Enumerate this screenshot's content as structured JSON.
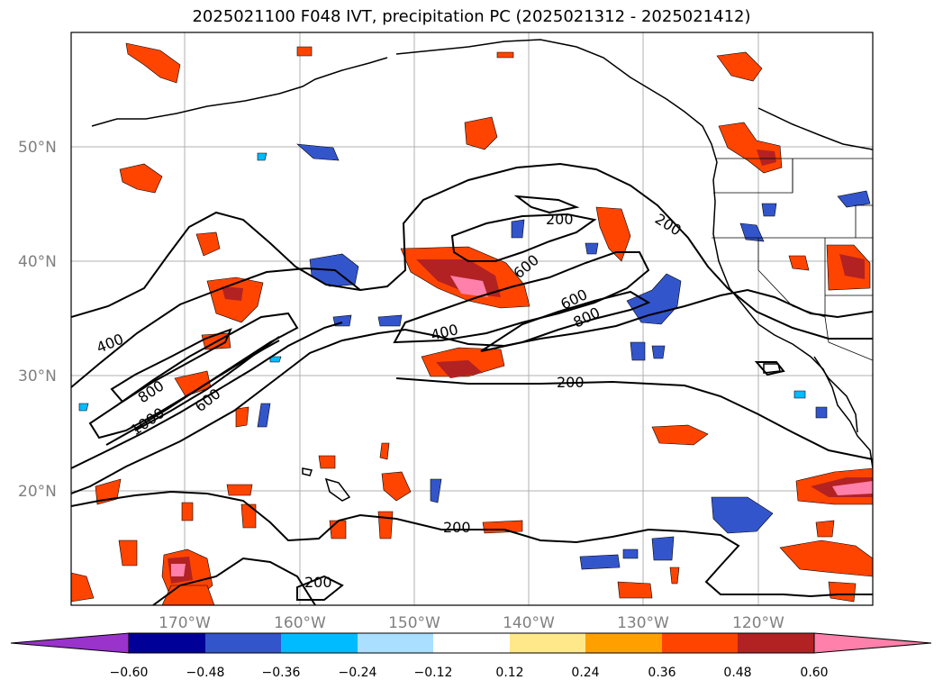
{
  "title": "2025021100 F048 IVT, precipitation PC (2025021312 - 2025021412)",
  "lat_labels": [
    "50°N",
    "40°N",
    "30°N",
    "20°N"
  ],
  "lon_labels": [
    "170°W",
    "160°W",
    "150°W",
    "140°W",
    "130°W",
    "120°W"
  ],
  "contour_labels": [
    "200",
    "200",
    "200",
    "200",
    "200",
    "400",
    "400",
    "600",
    "600",
    "600",
    "800",
    "800",
    "1000"
  ],
  "colorbar": {
    "ticks": [
      "−0.60",
      "−0.48",
      "−0.36",
      "−0.24",
      "−0.12",
      "0.12",
      "0.24",
      "0.36",
      "0.48",
      "0.60"
    ],
    "colors": [
      "#9933cc",
      "#000099",
      "#3355cc",
      "#00bbff",
      "#aadfff",
      "#ffffff",
      "#ffe88a",
      "#ffa000",
      "#ff4400",
      "#b22222",
      "#ff80aa"
    ]
  }
}
